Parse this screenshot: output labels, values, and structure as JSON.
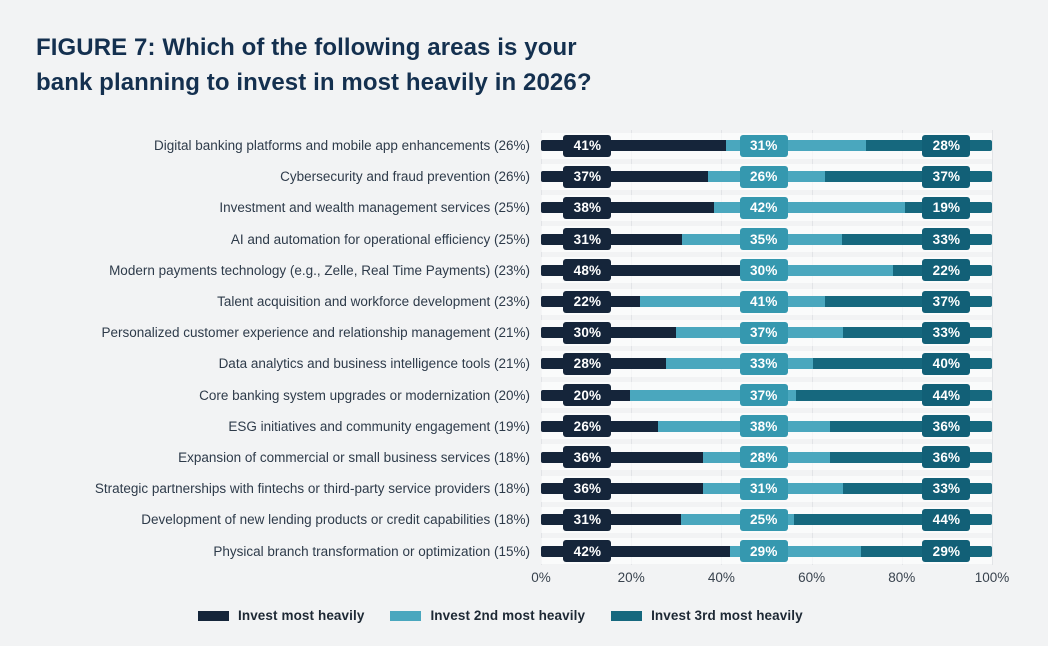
{
  "title_lines": [
    "FIGURE 7: Which of the following areas is your",
    "bank planning to invest in most heavily in 2026?"
  ],
  "colors": {
    "page_background": "#f2f3f4",
    "title": "#14304f",
    "category_label": "#2e3b4a",
    "axis_label": "#39434e",
    "gridline": "#e2e4e7",
    "value_label_text": "#ffffff"
  },
  "chart_data": {
    "type": "bar",
    "stacked": true,
    "orientation": "horizontal",
    "title": "FIGURE 7: Which of the following areas is your bank planning to invest in most heavily in 2026?",
    "categories": [
      "Digital banking platforms and mobile app enhancements (26%)",
      "Cybersecurity and fraud prevention (26%)",
      "Investment and wealth management services (25%)",
      "AI and automation for operational efficiency (25%)",
      "Modern payments technology (e.g., Zelle, Real Time Payments) (23%)",
      "Talent acquisition and workforce development (23%)",
      "Personalized customer experience and relationship management (21%)",
      "Data analytics and business intelligence tools (21%)",
      "Core banking system upgrades or modernization (20%)",
      "ESG initiatives and community engagement (19%)",
      "Expansion of commercial or small business services (18%)",
      "Strategic partnerships with fintechs or third-party service providers (18%)",
      "Development of new lending products or credit capabilities (18%)",
      "Physical branch transformation or optimization (15%)"
    ],
    "series": [
      {
        "name": "Invest most heavily",
        "color": "#15253a",
        "label_bg": "#15253a",
        "values": [
          41,
          37,
          38,
          31,
          48,
          22,
          30,
          28,
          20,
          26,
          36,
          36,
          31,
          42
        ]
      },
      {
        "name": "Invest 2nd most heavily",
        "color": "#4aa7be",
        "label_bg": "#3598af",
        "values": [
          31,
          26,
          42,
          35,
          30,
          41,
          37,
          33,
          37,
          38,
          28,
          31,
          25,
          29
        ]
      },
      {
        "name": "Invest 3rd most heavily",
        "color": "#16687e",
        "label_bg": "#126077",
        "values": [
          28,
          37,
          19,
          33,
          22,
          37,
          33,
          40,
          44,
          36,
          36,
          33,
          44,
          29
        ]
      }
    ],
    "value_label_suffix": "%",
    "x_ticks": [
      "0%",
      "20%",
      "40%",
      "60%",
      "80%",
      "100%"
    ],
    "xlim": [
      0,
      100
    ],
    "grid": "vertical",
    "legend_position": "bottom"
  }
}
